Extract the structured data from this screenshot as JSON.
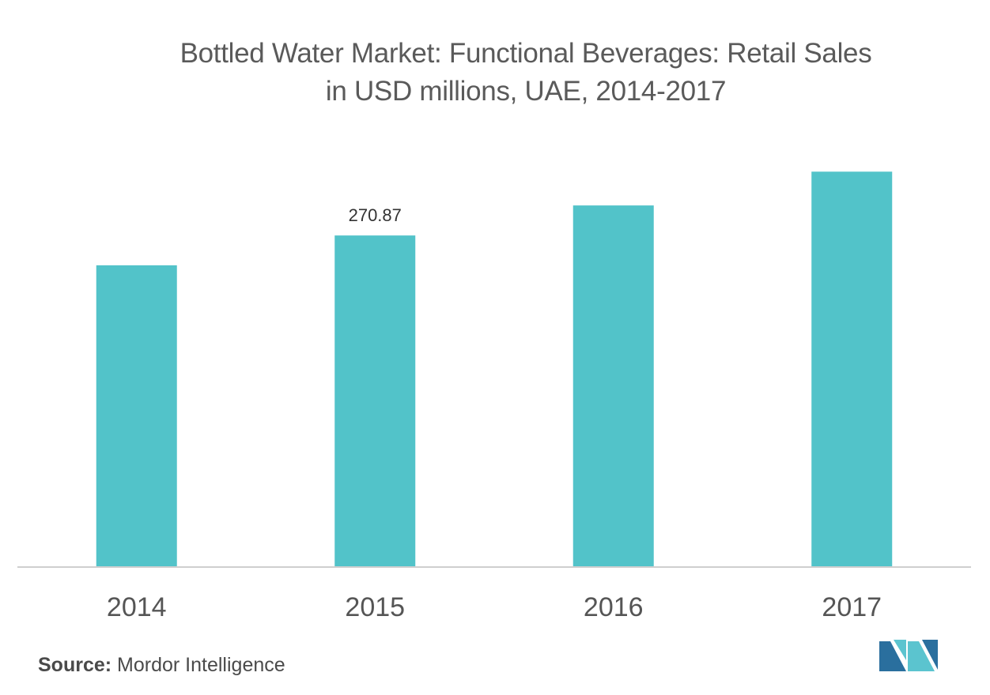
{
  "chart_data": {
    "type": "bar",
    "title": "Bottled Water Market: Functional Beverages: Retail Sales in USD millions, UAE, 2014-2017",
    "title_lines": [
      "Bottled Water Market: Functional Beverages: Retail Sales",
      "in USD millions, UAE, 2014-2017"
    ],
    "categories": [
      "2014",
      "2015",
      "2016",
      "2017"
    ],
    "values": [
      246.5,
      270.87,
      295.4,
      323.0
    ],
    "data_labels": [
      "",
      "270.87",
      "",
      ""
    ],
    "xlabel": "",
    "ylabel": "",
    "ylim": [
      0,
      360
    ],
    "grid": false,
    "legend": "none",
    "bar_color": "#52c3c9",
    "axis_color": "#cfcfcf"
  },
  "source": {
    "label": "Source:",
    "text": "Mordor Intelligence"
  },
  "logo": {
    "icon": "mordor-intelligence-logo",
    "colors": [
      "#2a6f9e",
      "#5bc4cf"
    ]
  }
}
